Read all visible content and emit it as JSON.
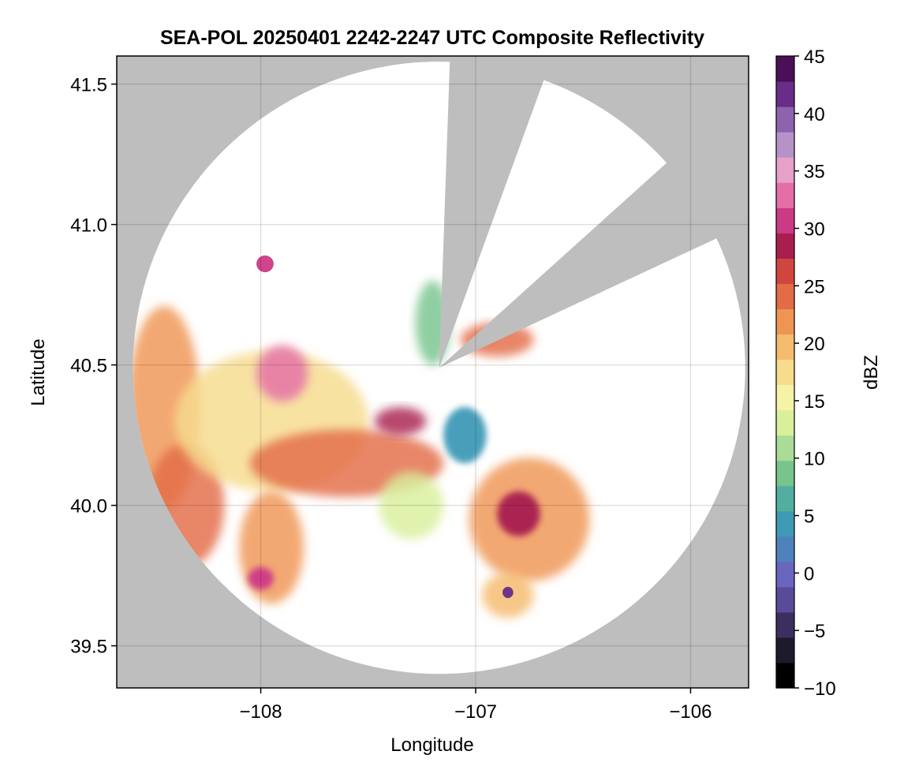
{
  "chart_data": {
    "type": "heatmap",
    "title": "SEA-POL 20250401 2242-2247 UTC Composite Reflectivity",
    "xlabel": "Longitude",
    "ylabel": "Latitude",
    "xlim": [
      -108.67,
      -105.73
    ],
    "ylim": [
      39.35,
      41.6
    ],
    "x_ticks": [
      -108,
      -107,
      -106
    ],
    "x_tick_labels": [
      "−108",
      "−107",
      "−106"
    ],
    "y_ticks": [
      39.5,
      40.0,
      40.5,
      41.0,
      41.5
    ],
    "y_tick_labels": [
      "39.5",
      "40.0",
      "40.5",
      "41.0",
      "41.5"
    ],
    "grid": true,
    "background_color": "#bebebe",
    "radar": {
      "center_lon": -107.17,
      "center_lat": 40.49,
      "range_deg_lat": 1.09,
      "blocked_sectors": [
        [
          2,
          20
        ],
        [
          48,
          65
        ]
      ]
    },
    "colorbar": {
      "label": "dBZ",
      "min": -10,
      "max": 45,
      "ticks": [
        -10,
        -5,
        0,
        5,
        10,
        15,
        20,
        25,
        30,
        35,
        40,
        45
      ],
      "tick_labels": [
        "−10",
        "−5",
        "0",
        "5",
        "10",
        "15",
        "20",
        "25",
        "30",
        "35",
        "40",
        "45"
      ],
      "colors": [
        "#000000",
        "#1d1a2b",
        "#3a2f5e",
        "#5a4a9a",
        "#6a66bf",
        "#4f82bd",
        "#3f9ab6",
        "#52af9f",
        "#78c48d",
        "#aadc98",
        "#d9ef9c",
        "#f6f2a7",
        "#f7dc8e",
        "#f5bb6e",
        "#ef9553",
        "#e36b45",
        "#d0463f",
        "#a81e4f",
        "#cc3a86",
        "#e46fa6",
        "#e7a0c7",
        "#b593c9",
        "#8e63ad",
        "#692c89",
        "#4a0f56"
      ]
    },
    "echo_cells": [
      {
        "name": "west-band",
        "lon": -108.45,
        "lat": 40.35,
        "rx": 0.17,
        "ry": 0.36,
        "dbz": 22
      },
      {
        "name": "west-band-south",
        "lon": -108.35,
        "lat": 40.0,
        "rx": 0.18,
        "ry": 0.22,
        "dbz": 23
      },
      {
        "name": "western-main",
        "lon": -107.95,
        "lat": 40.3,
        "rx": 0.45,
        "ry": 0.25,
        "dbz": 18
      },
      {
        "name": "north-core",
        "lon": -107.9,
        "lat": 40.47,
        "rx": 0.12,
        "ry": 0.1,
        "dbz": 32
      },
      {
        "name": "diagonal-band",
        "lon": -107.6,
        "lat": 40.15,
        "rx": 0.45,
        "ry": 0.12,
        "dbz": 24
      },
      {
        "name": "central-core",
        "lon": -107.35,
        "lat": 40.3,
        "rx": 0.12,
        "ry": 0.05,
        "dbz": 29
      },
      {
        "name": "south-west-arm",
        "lon": -107.95,
        "lat": 39.85,
        "rx": 0.15,
        "ry": 0.2,
        "dbz": 21
      },
      {
        "name": "south-west-core",
        "lon": -108.0,
        "lat": 39.74,
        "rx": 0.06,
        "ry": 0.04,
        "dbz": 31
      },
      {
        "name": "central-green",
        "lon": -107.3,
        "lat": 40.0,
        "rx": 0.15,
        "ry": 0.12,
        "dbz": 12
      },
      {
        "name": "near-radar-blue",
        "lon": -107.05,
        "lat": 40.25,
        "rx": 0.1,
        "ry": 0.1,
        "dbz": 4
      },
      {
        "name": "east-complex",
        "lon": -106.75,
        "lat": 39.95,
        "rx": 0.28,
        "ry": 0.22,
        "dbz": 22
      },
      {
        "name": "east-core",
        "lon": -106.8,
        "lat": 39.97,
        "rx": 0.1,
        "ry": 0.08,
        "dbz": 29
      },
      {
        "name": "south-east-cell",
        "lon": -106.85,
        "lat": 39.68,
        "rx": 0.12,
        "ry": 0.08,
        "dbz": 20
      },
      {
        "name": "hail-spot",
        "lon": -106.85,
        "lat": 39.69,
        "rx": 0.025,
        "ry": 0.02,
        "dbz": 42
      },
      {
        "name": "north-east-cluster",
        "lon": -106.9,
        "lat": 40.59,
        "rx": 0.17,
        "ry": 0.06,
        "dbz": 25
      },
      {
        "name": "north-isolated",
        "lon": -107.98,
        "lat": 40.86,
        "rx": 0.04,
        "ry": 0.03,
        "dbz": 30
      },
      {
        "name": "north-east-streamer",
        "lon": -107.2,
        "lat": 40.65,
        "rx": 0.08,
        "ry": 0.15,
        "dbz": 9
      }
    ]
  }
}
